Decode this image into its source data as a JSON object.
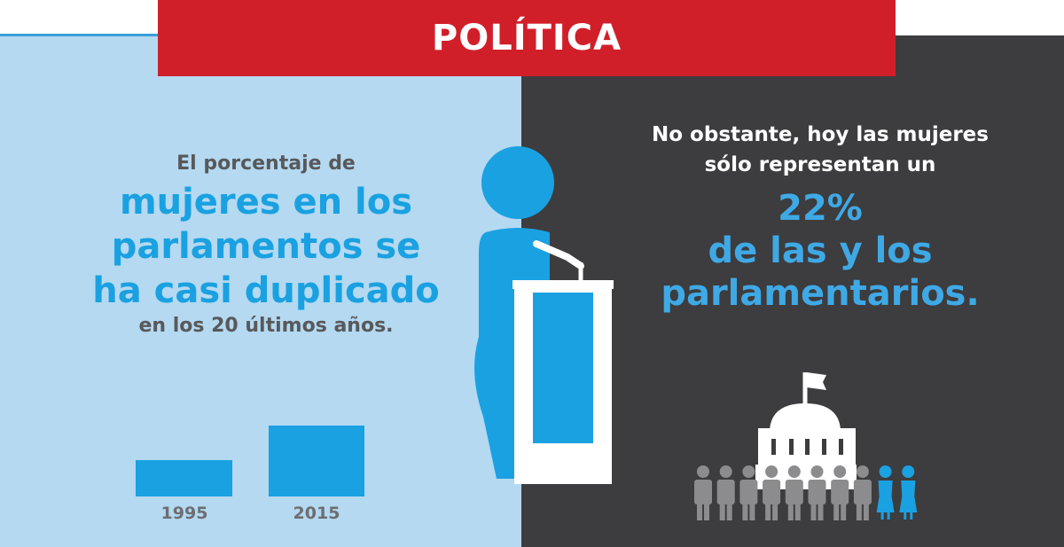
{
  "banner": {
    "title": "POLÍTICA"
  },
  "left": {
    "line1": "El porcentaje de",
    "line2": "mujeres en los",
    "line3": "parlamentos se",
    "line4": "ha casi duplicado",
    "line5": "en los 20 últimos años."
  },
  "right": {
    "line1": "No obstante, hoy las mujeres",
    "line2": "sólo representan un",
    "line3": "22%",
    "line4": "de las y los",
    "line5": "parlamentarios."
  },
  "colors": {
    "accent_blue": "#1aa1e1",
    "banner_red": "#d11f2a",
    "dark_bg": "#3d3c3e",
    "light_bg": "#b4d9f1",
    "men_gray": "#8c8c8e"
  },
  "icons": [
    "woman-speaker-at-podium-icon",
    "parliament-building-icon",
    "man-icon",
    "woman-icon"
  ],
  "people": {
    "men": 8,
    "women": 2
  },
  "chart_data": {
    "type": "bar",
    "categories": [
      "1995",
      "2015"
    ],
    "values": [
      11.3,
      22
    ],
    "title": "",
    "xlabel": "",
    "ylabel": ""
  }
}
